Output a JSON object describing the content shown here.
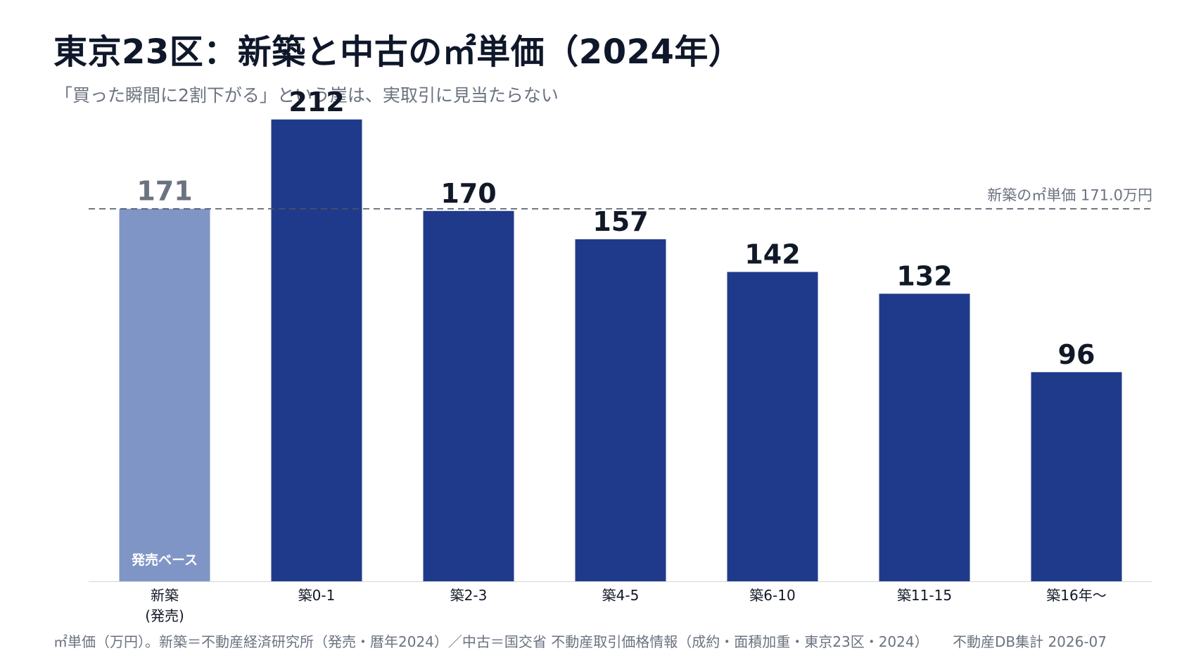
{
  "header": {
    "title": "東京23区：新築と中古の㎡単価（2024年）",
    "subtitle": "「買った瞬間に2割下がる」という崖は、実取引に見当たらない"
  },
  "footer": {
    "source": "㎡単価（万円）。新築＝不動産経済研究所（発売・暦年2024）／中古＝国交省 不動産取引価格情報（成約・面積加重・東京23区・2024）",
    "credit": "不動産DB集計 2026-07"
  },
  "colors": {
    "new_bar": "#7f95c5",
    "used_bar": "#1f3a8a",
    "new_label": "#6b7280",
    "used_label": "#111827",
    "reference_line": "#4b5563"
  },
  "chart_data": {
    "type": "bar",
    "categories": [
      "新築\n(発売)",
      "築0-1",
      "築2-3",
      "築4-5",
      "築6-10",
      "築11-15",
      "築16年〜"
    ],
    "values": [
      171,
      212,
      170,
      157,
      142,
      132,
      96
    ],
    "data_labels": [
      "171",
      "212",
      "170",
      "157",
      "142",
      "132",
      "96"
    ],
    "bar_inner_label": {
      "index": 0,
      "text": "発売ベース"
    },
    "reference_line": {
      "value": 171.0,
      "label": "新築の㎡単価 171.0万円",
      "style": "dashed"
    },
    "ylim": [
      0,
      220
    ],
    "grid": false,
    "legend": "none"
  }
}
